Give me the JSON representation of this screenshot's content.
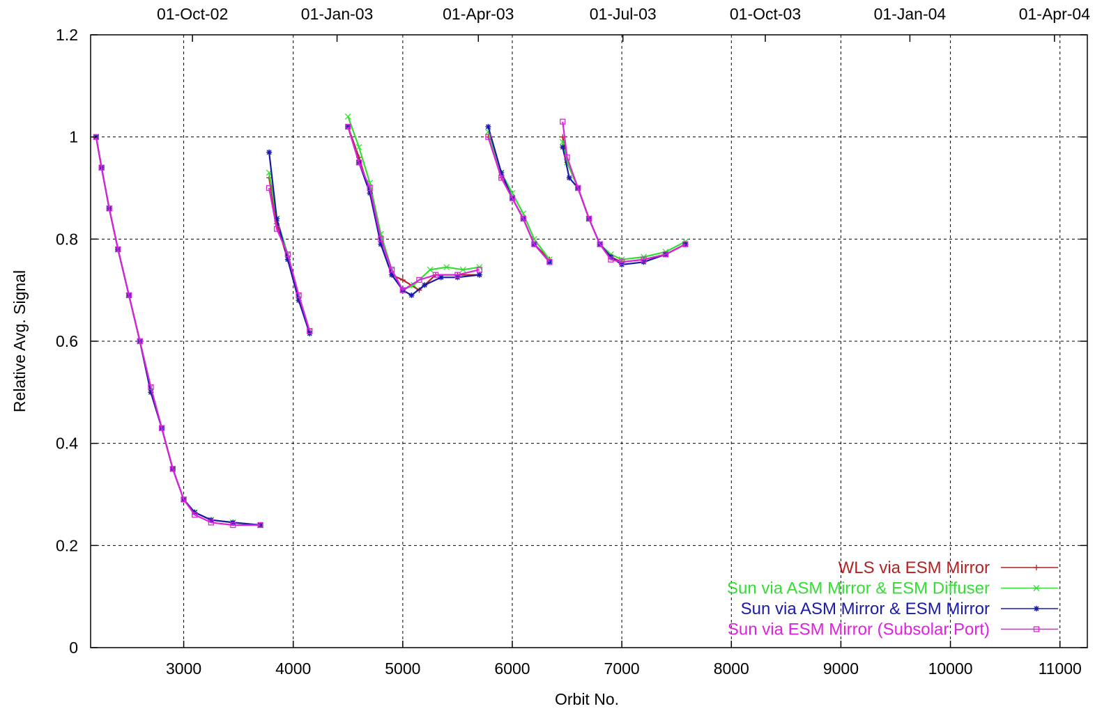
{
  "chart_data": {
    "type": "line",
    "xlabel": "Orbit No.",
    "ylabel": "Relative Avg. Signal",
    "xlim": [
      2150,
      11250
    ],
    "ylim": [
      0,
      1.2
    ],
    "x_ticks": [
      3000,
      4000,
      5000,
      6000,
      7000,
      8000,
      9000,
      10000,
      11000
    ],
    "y_ticks": [
      0,
      0.2,
      0.4,
      0.6,
      0.8,
      1,
      1.2
    ],
    "y_tick_labels": [
      "0",
      "0.2",
      "0.4",
      "0.6",
      "0.8",
      "1",
      "1.2"
    ],
    "top_axis": {
      "labels": [
        "01-Oct-02",
        "01-Jan-03",
        "01-Apr-03",
        "01-Jul-03",
        "01-Oct-03",
        "01-Jan-04",
        "01-Apr-04"
      ],
      "orbits": [
        3080,
        4400,
        5690,
        7010,
        8310,
        9630,
        10950
      ]
    },
    "grid": true,
    "legend_position": "bottom-right",
    "series": [
      {
        "name": "WLS via ESM Mirror",
        "color": "#b22222",
        "marker": "plus",
        "segments": [
          [
            [
              2200,
              1.0
            ],
            [
              2250,
              0.94
            ],
            [
              2320,
              0.86
            ],
            [
              2400,
              0.78
            ],
            [
              2500,
              0.69
            ],
            [
              2600,
              0.6
            ],
            [
              2700,
              0.5
            ],
            [
              2800,
              0.43
            ],
            [
              2900,
              0.35
            ],
            [
              3000,
              0.29
            ],
            [
              3100,
              0.265
            ],
            [
              3250,
              0.25
            ],
            [
              3450,
              0.245
            ],
            [
              3700,
              0.24
            ]
          ],
          [
            [
              3780,
              0.92
            ],
            [
              3850,
              0.83
            ],
            [
              3950,
              0.76
            ],
            [
              4050,
              0.68
            ],
            [
              4150,
              0.62
            ]
          ],
          [
            [
              4500,
              1.02
            ],
            [
              4600,
              0.96
            ],
            [
              4700,
              0.89
            ],
            [
              4800,
              0.79
            ],
            [
              4900,
              0.73
            ],
            [
              5000,
              0.72
            ],
            [
              5150,
              0.7
            ],
            [
              5300,
              0.73
            ],
            [
              5500,
              0.73
            ],
            [
              5700,
              0.73
            ]
          ],
          [
            [
              5780,
              1.0
            ],
            [
              5900,
              0.92
            ],
            [
              6000,
              0.88
            ],
            [
              6100,
              0.84
            ],
            [
              6200,
              0.79
            ],
            [
              6340,
              0.76
            ]
          ],
          [
            [
              6460,
              1.0
            ],
            [
              6500,
              0.95
            ],
            [
              6600,
              0.9
            ],
            [
              6700,
              0.84
            ],
            [
              6800,
              0.79
            ],
            [
              6900,
              0.765
            ],
            [
              7000,
              0.755
            ],
            [
              7200,
              0.76
            ],
            [
              7400,
              0.77
            ],
            [
              7580,
              0.79
            ]
          ]
        ]
      },
      {
        "name": "Sun via ASM Mirror & ESM Diffuser",
        "color": "#33dd33",
        "marker": "cross",
        "segments": [
          [
            [
              2200,
              1.0
            ],
            [
              2250,
              0.94
            ],
            [
              2320,
              0.86
            ],
            [
              2400,
              0.78
            ],
            [
              2500,
              0.69
            ],
            [
              2600,
              0.6
            ],
            [
              2700,
              0.51
            ],
            [
              2800,
              0.43
            ],
            [
              2900,
              0.35
            ],
            [
              3000,
              0.29
            ],
            [
              3100,
              0.265
            ],
            [
              3250,
              0.25
            ],
            [
              3450,
              0.245
            ],
            [
              3700,
              0.24
            ]
          ],
          [
            [
              3780,
              0.93
            ],
            [
              3850,
              0.84
            ],
            [
              3950,
              0.77
            ],
            [
              4050,
              0.69
            ],
            [
              4150,
              0.62
            ]
          ],
          [
            [
              4500,
              1.04
            ],
            [
              4600,
              0.98
            ],
            [
              4700,
              0.91
            ],
            [
              4800,
              0.81
            ],
            [
              4900,
              0.74
            ],
            [
              5000,
              0.7
            ],
            [
              5100,
              0.71
            ],
            [
              5250,
              0.74
            ],
            [
              5400,
              0.745
            ],
            [
              5550,
              0.74
            ],
            [
              5700,
              0.745
            ]
          ],
          [
            [
              5780,
              1.01
            ],
            [
              5900,
              0.93
            ],
            [
              6000,
              0.89
            ],
            [
              6100,
              0.85
            ],
            [
              6200,
              0.8
            ],
            [
              6340,
              0.76
            ]
          ],
          [
            [
              6460,
              0.99
            ],
            [
              6500,
              0.95
            ],
            [
              6600,
              0.9
            ],
            [
              6700,
              0.84
            ],
            [
              6800,
              0.79
            ],
            [
              6900,
              0.77
            ],
            [
              7000,
              0.76
            ],
            [
              7200,
              0.765
            ],
            [
              7400,
              0.775
            ],
            [
              7580,
              0.795
            ]
          ]
        ]
      },
      {
        "name": "Sun via ASM Mirror & ESM Mirror",
        "color": "#1a1aa8",
        "marker": "star",
        "segments": [
          [
            [
              2200,
              1.0
            ],
            [
              2250,
              0.94
            ],
            [
              2320,
              0.86
            ],
            [
              2400,
              0.78
            ],
            [
              2500,
              0.69
            ],
            [
              2600,
              0.6
            ],
            [
              2700,
              0.5
            ],
            [
              2800,
              0.43
            ],
            [
              2900,
              0.35
            ],
            [
              3000,
              0.29
            ],
            [
              3100,
              0.265
            ],
            [
              3250,
              0.25
            ],
            [
              3450,
              0.245
            ],
            [
              3700,
              0.24
            ]
          ],
          [
            [
              3780,
              0.97
            ],
            [
              3850,
              0.84
            ],
            [
              3950,
              0.76
            ],
            [
              4050,
              0.68
            ],
            [
              4150,
              0.615
            ]
          ],
          [
            [
              4500,
              1.02
            ],
            [
              4600,
              0.95
            ],
            [
              4700,
              0.89
            ],
            [
              4800,
              0.79
            ],
            [
              4900,
              0.73
            ],
            [
              5000,
              0.7
            ],
            [
              5080,
              0.69
            ],
            [
              5200,
              0.71
            ],
            [
              5350,
              0.725
            ],
            [
              5500,
              0.725
            ],
            [
              5700,
              0.73
            ]
          ],
          [
            [
              5780,
              1.02
            ],
            [
              5900,
              0.93
            ],
            [
              6000,
              0.88
            ],
            [
              6100,
              0.84
            ],
            [
              6200,
              0.79
            ],
            [
              6340,
              0.755
            ]
          ],
          [
            [
              6460,
              0.98
            ],
            [
              6520,
              0.92
            ],
            [
              6600,
              0.9
            ],
            [
              6700,
              0.84
            ],
            [
              6800,
              0.79
            ],
            [
              6900,
              0.765
            ],
            [
              7000,
              0.75
            ],
            [
              7200,
              0.755
            ],
            [
              7400,
              0.77
            ],
            [
              7580,
              0.79
            ]
          ]
        ]
      },
      {
        "name": "Sun via ESM Mirror (Subsolar Port)",
        "color": "#dd22dd",
        "marker": "square",
        "segments": [
          [
            [
              2200,
              1.0
            ],
            [
              2250,
              0.94
            ],
            [
              2320,
              0.86
            ],
            [
              2400,
              0.78
            ],
            [
              2500,
              0.69
            ],
            [
              2600,
              0.6
            ],
            [
              2700,
              0.51
            ],
            [
              2800,
              0.43
            ],
            [
              2900,
              0.35
            ],
            [
              3000,
              0.29
            ],
            [
              3100,
              0.26
            ],
            [
              3250,
              0.245
            ],
            [
              3450,
              0.24
            ],
            [
              3700,
              0.24
            ]
          ],
          [
            [
              3780,
              0.9
            ],
            [
              3850,
              0.82
            ],
            [
              3950,
              0.77
            ],
            [
              4050,
              0.69
            ],
            [
              4150,
              0.62
            ]
          ],
          [
            [
              4500,
              1.02
            ],
            [
              4600,
              0.95
            ],
            [
              4700,
              0.9
            ],
            [
              4800,
              0.8
            ],
            [
              4900,
              0.74
            ],
            [
              5000,
              0.7
            ],
            [
              5150,
              0.72
            ],
            [
              5300,
              0.73
            ],
            [
              5500,
              0.73
            ],
            [
              5700,
              0.74
            ]
          ],
          [
            [
              5780,
              1.0
            ],
            [
              5900,
              0.92
            ],
            [
              6000,
              0.88
            ],
            [
              6100,
              0.84
            ],
            [
              6200,
              0.79
            ],
            [
              6340,
              0.755
            ]
          ],
          [
            [
              6460,
              1.03
            ],
            [
              6500,
              0.96
            ],
            [
              6600,
              0.9
            ],
            [
              6700,
              0.84
            ],
            [
              6800,
              0.79
            ],
            [
              6900,
              0.76
            ],
            [
              7000,
              0.755
            ],
            [
              7200,
              0.76
            ],
            [
              7400,
              0.77
            ],
            [
              7580,
              0.79
            ]
          ]
        ]
      }
    ]
  }
}
